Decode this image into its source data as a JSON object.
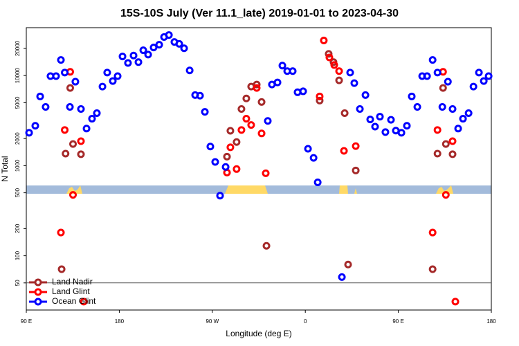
{
  "chart_data": {
    "type": "scatter",
    "title": "15S-10S July (Ver 11.1_late)   2019-01-01 to 2023-04-30",
    "xlabel": "Longitude (deg E)",
    "ylabel": "N Total",
    "xlim": [
      90,
      540
    ],
    "xticks": [
      {
        "value": 90,
        "label": "90 E"
      },
      180,
      {
        "value": 270,
        "label": "90 W"
      },
      {
        "value": 360,
        "label": "0"
      },
      {
        "value": 450,
        "label": "90 E"
      },
      180
    ],
    "ylim": [
      25,
      34000
    ],
    "log_y": true,
    "yticks": [
      50,
      100,
      200,
      500,
      1000,
      2000,
      5000,
      10000,
      20000
    ],
    "hline": 50,
    "legend": "lower left",
    "series": [
      {
        "name": "Land Nadir",
        "color": "#a52a2a",
        "x": [
          124.2,
          128,
          132.5,
          135.2,
          142.9,
          284.2,
          287.5,
          293.5,
          298.2,
          302.9,
          307.6,
          313,
          317.7,
          322.4,
          373.9,
          382.6,
          387.3,
          392.7,
          398.1,
          401.4,
          408.8,
          483.2,
          487.9,
          493.3,
          496,
          502.5
        ],
        "values": [
          71,
          1360,
          7280,
          1740,
          1340,
          1260,
          2440,
          1830,
          4260,
          5570,
          7540,
          7960,
          5090,
          129,
          5280,
          17400,
          14100,
          8850,
          3830,
          80,
          885,
          71,
          1360,
          7280,
          1740,
          1340
        ]
      },
      {
        "name": "Land Glint",
        "color": "#ff0000",
        "x": [
          123.5,
          127.2,
          132.5,
          135.2,
          142.9,
          145.6,
          284.2,
          287.5,
          293.5,
          298.2,
          302.9,
          307.6,
          313,
          317.7,
          321.7,
          373.9,
          377.9,
          383.3,
          388,
          392.7,
          397.4,
          408.8,
          483.2,
          487.9,
          493.3,
          496,
          502.5,
          505.2
        ],
        "values": [
          181,
          2490,
          11000,
          474,
          1870,
          31,
          839,
          1600,
          917,
          2490,
          3320,
          2830,
          7280,
          2280,
          824,
          5870,
          24500,
          15900,
          13100,
          11200,
          1460,
          1650,
          181,
          2490,
          11000,
          474,
          1870,
          31
        ]
      },
      {
        "name": "Ocean Glint",
        "color": "#0000ff",
        "x": [
          92.7,
          98.7,
          103.4,
          108.7,
          113.4,
          118.8,
          123.5,
          127.2,
          132.2,
          137.5,
          142.9,
          148.3,
          153.6,
          158.3,
          163.7,
          168.3,
          173.7,
          178.4,
          183.1,
          188.4,
          193.8,
          198.5,
          203.2,
          207.9,
          213.2,
          218.6,
          223.3,
          228,
          233.3,
          238,
          242.7,
          248.1,
          253.4,
          258.1,
          262.8,
          268.1,
          272.8,
          277.5,
          282.9,
          323.7,
          327.7,
          333.1,
          337.8,
          342.5,
          347.8,
          352.5,
          357.9,
          362.6,
          368,
          372,
          395.4,
          403.4,
          407.4,
          412.8,
          418.2,
          422.8,
          427.5,
          432.2,
          437.5,
          442.9,
          447.6,
          453,
          458.3,
          463,
          468.4,
          473.1,
          477.8,
          483.2,
          487.9,
          492.6,
          498,
          502.5,
          507.9,
          512.6,
          518,
          522.7,
          528,
          532.7,
          537.4
        ],
        "values": [
          2320,
          2770,
          5870,
          4490,
          9860,
          9860,
          14900,
          10800,
          4490,
          8550,
          4260,
          2580,
          3320,
          3830,
          7540,
          10800,
          8700,
          9860,
          16300,
          13800,
          16700,
          14100,
          19100,
          17100,
          20500,
          22000,
          26800,
          28200,
          23600,
          22500,
          20100,
          11400,
          6080,
          5980,
          3960,
          1630,
          1100,
          465,
          968,
          3140,
          7960,
          8390,
          12900,
          11200,
          11200,
          6530,
          6690,
          1540,
          1220,
          653,
          58,
          10800,
          8240,
          4260,
          6080,
          3260,
          2710,
          3500,
          2360,
          3230,
          2450,
          2320,
          2770,
          5870,
          4490,
          9860,
          9860,
          14900,
          10800,
          4490,
          8550,
          4260,
          2580,
          3320,
          3830,
          7540,
          10800,
          8700,
          9860
        ]
      }
    ]
  }
}
